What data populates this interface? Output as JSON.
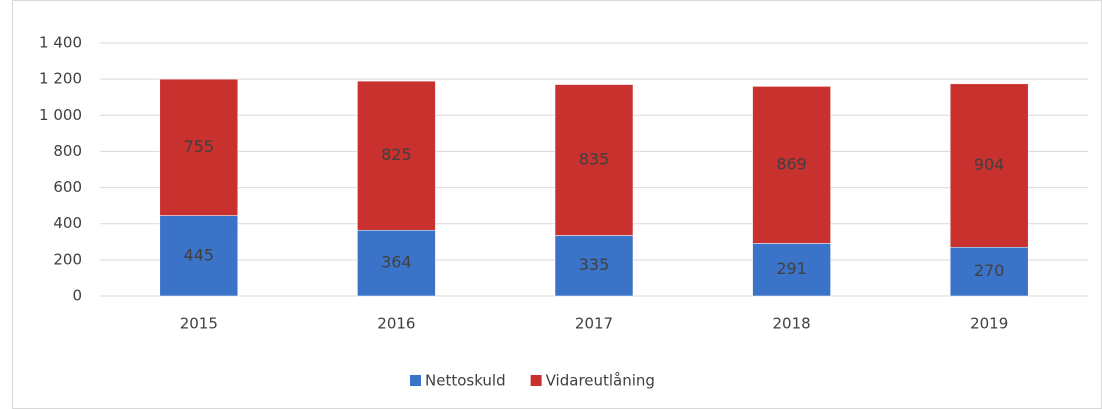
{
  "chart_data": {
    "type": "stacked_bar",
    "categories": [
      "2015",
      "2016",
      "2017",
      "2018",
      "2019"
    ],
    "series": [
      {
        "name": "Nettoskuld",
        "color": "#3b73c8",
        "values": [
          445,
          364,
          335,
          291,
          270
        ]
      },
      {
        "name": "Vidareutlåning",
        "color": "#c8312d",
        "values": [
          755,
          825,
          835,
          869,
          904
        ]
      }
    ],
    "ylim": [
      0,
      1400
    ],
    "yticks": [
      0,
      200,
      400,
      600,
      800,
      {
        "value": 1000,
        "label": "1 000"
      },
      {
        "value": 1200,
        "label": "1 200"
      },
      {
        "value": 1400,
        "label": "1 400"
      }
    ],
    "grid": true,
    "legend": "bottom"
  }
}
